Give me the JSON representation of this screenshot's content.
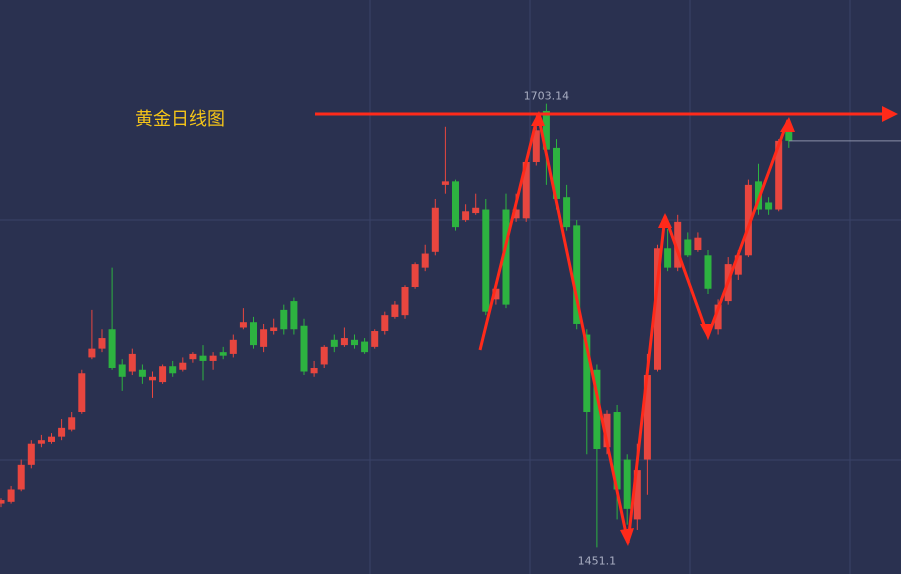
{
  "chart_data": {
    "type": "candlestick",
    "title": "黄金日线图",
    "up_color": "#e8463f",
    "down_color": "#2db340",
    "ylim": [
      1436,
      1762
    ],
    "high_label": "1703.14",
    "low_label": "1451.1",
    "open": [
      1476,
      1477,
      1484,
      1498,
      1510,
      1511,
      1514,
      1518,
      1528,
      1559,
      1564,
      1575,
      1555,
      1551,
      1552,
      1546,
      1545,
      1554,
      1552,
      1558,
      1560,
      1557,
      1562,
      1561,
      1576,
      1579,
      1565,
      1574,
      1586,
      1591,
      1577,
      1550,
      1555,
      1569,
      1566,
      1569,
      1568,
      1565,
      1574,
      1582,
      1583,
      1599,
      1610,
      1619,
      1657,
      1659,
      1637,
      1641,
      1643,
      1592,
      1643,
      1638,
      1638,
      1670,
      1699,
      1678,
      1650,
      1634,
      1572,
      1552,
      1508,
      1528,
      1501,
      1467,
      1501,
      1552,
      1621,
      1610,
      1626,
      1620,
      1617,
      1575,
      1591,
      1606,
      1617,
      1659,
      1647,
      1643,
      1690
    ],
    "high": [
      1479,
      1486,
      1501,
      1512,
      1515,
      1516,
      1524,
      1528,
      1552,
      1586,
      1575,
      1610,
      1558,
      1564,
      1555,
      1551,
      1555,
      1557,
      1559,
      1562,
      1566,
      1562,
      1565,
      1572,
      1587,
      1582,
      1578,
      1581,
      1589,
      1593,
      1581,
      1557,
      1566,
      1572,
      1576,
      1572,
      1570,
      1575,
      1585,
      1591,
      1600,
      1613,
      1623,
      1649,
      1690,
      1660,
      1646,
      1652,
      1649,
      1600,
      1652,
      1652,
      1672,
      1691,
      1703.14,
      1683,
      1657,
      1637,
      1575,
      1555,
      1529,
      1532,
      1504,
      1510,
      1561,
      1623,
      1632,
      1640,
      1630,
      1630,
      1620,
      1592,
      1616,
      1620,
      1660,
      1669,
      1650,
      1683,
      1694
    ],
    "low": [
      1474,
      1476,
      1483,
      1496,
      1508,
      1510,
      1512,
      1517,
      1527,
      1558,
      1562,
      1552,
      1540,
      1549,
      1544,
      1536,
      1544,
      1548,
      1551,
      1556,
      1546,
      1552,
      1558,
      1559,
      1575,
      1564,
      1562,
      1572,
      1572,
      1572,
      1549,
      1548,
      1553,
      1562,
      1565,
      1564,
      1561,
      1564,
      1572,
      1581,
      1581,
      1598,
      1608,
      1617,
      1652,
      1631,
      1636,
      1640,
      1583,
      1589,
      1587,
      1636,
      1636,
      1668,
      1657,
      1643,
      1631,
      1575,
      1504,
      1451.1,
      1504,
      1467,
      1464,
      1461,
      1481,
      1551,
      1608,
      1608,
      1616,
      1619,
      1595,
      1572,
      1589,
      1603,
      1616,
      1640,
      1640,
      1642,
      1678
    ],
    "close": [
      1478,
      1484,
      1498,
      1510,
      1512,
      1514,
      1519,
      1525,
      1550,
      1564,
      1570,
      1553,
      1548,
      1561,
      1548,
      1548,
      1554,
      1550,
      1556,
      1561,
      1557,
      1560,
      1560,
      1569,
      1579,
      1566,
      1575,
      1576,
      1575,
      1575,
      1551,
      1553,
      1565,
      1565,
      1570,
      1566,
      1562,
      1574,
      1583,
      1589,
      1599,
      1612,
      1618,
      1644,
      1659,
      1633,
      1642,
      1644,
      1585,
      1598,
      1589,
      1643,
      1670,
      1688,
      1677,
      1649,
      1633,
      1578,
      1528,
      1507,
      1527,
      1484,
      1473,
      1495,
      1549,
      1621,
      1610,
      1636,
      1617,
      1627,
      1598,
      1589,
      1612,
      1617,
      1657,
      1643,
      1643,
      1682,
      1682
    ]
  }
}
